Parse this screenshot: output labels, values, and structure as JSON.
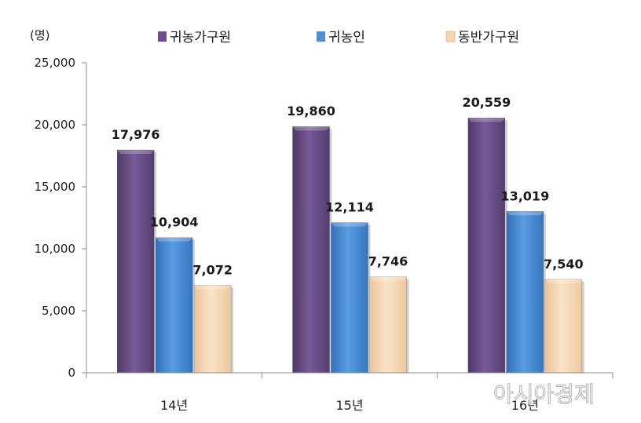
{
  "chart_data": {
    "type": "bar",
    "unit_label": "(명)",
    "categories": [
      "14년",
      "15년",
      "16년"
    ],
    "series": [
      {
        "name": "귀농가구원",
        "color": "#6b4f8a",
        "values": [
          17976,
          19860,
          20559
        ],
        "labels": [
          "17,976",
          "19,860",
          "20,559"
        ]
      },
      {
        "name": "귀농인",
        "color": "#4d8fd6",
        "values": [
          10904,
          12114,
          13019
        ],
        "labels": [
          "10,904",
          "12,114",
          "13,019"
        ]
      },
      {
        "name": "동반가구원",
        "color": "#f6d7b4",
        "values": [
          7072,
          7746,
          7540
        ],
        "labels": [
          "7,072",
          "7,746",
          "7,540"
        ]
      }
    ],
    "ylim": [
      0,
      25000
    ],
    "yticks": [
      0,
      5000,
      10000,
      15000,
      20000,
      25000
    ],
    "ytick_labels": [
      "0",
      "5,000",
      "10,000",
      "15,000",
      "20,000",
      "25,000"
    ],
    "legend_position": "top",
    "grid": false
  },
  "watermark": "아시아경제"
}
